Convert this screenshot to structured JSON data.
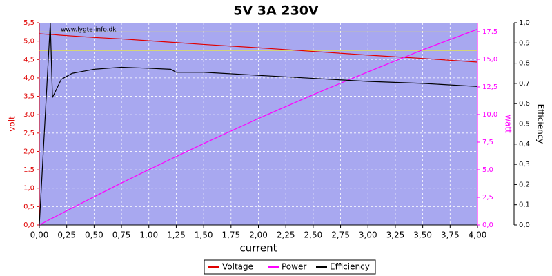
{
  "chart_data": {
    "type": "line",
    "title": "5V 3A 230V",
    "watermark": "www.lygte-info.dk",
    "xlabel": "current",
    "ylabel": "volt",
    "y2label": "watt",
    "y3label": "Efficiency",
    "x": [
      0,
      0.1,
      0.12,
      0.2,
      0.3,
      0.5,
      0.75,
      1.0,
      1.2,
      1.25,
      1.5,
      2.0,
      2.5,
      3.0,
      3.5,
      4.0
    ],
    "series": [
      {
        "name": "Voltage",
        "color": "#e00000",
        "axis": "y",
        "values": [
          5.2,
          5.18,
          5.18,
          5.16,
          5.14,
          5.1,
          5.06,
          5.01,
          4.97,
          4.96,
          4.91,
          4.82,
          4.72,
          4.62,
          4.53,
          4.43
        ]
      },
      {
        "name": "Power",
        "color": "#ff00ff",
        "axis": "y2",
        "values": [
          0,
          0.52,
          0.62,
          1.03,
          1.54,
          2.55,
          3.8,
          5.01,
          5.96,
          6.2,
          7.37,
          9.64,
          11.8,
          13.86,
          15.86,
          17.72
        ]
      },
      {
        "name": "Efficiency",
        "color": "#000000",
        "axis": "y3",
        "values": [
          0,
          1.0,
          0.63,
          0.72,
          0.75,
          0.77,
          0.78,
          0.775,
          0.77,
          0.755,
          0.755,
          0.74,
          0.725,
          0.71,
          0.7,
          0.685
        ]
      }
    ],
    "reference_lines": {
      "color": "#ffff00",
      "values": [
        4.75,
        5.25
      ]
    },
    "xlim": [
      0,
      4
    ],
    "xticks": [
      {
        "value": 0,
        "label": "0,00"
      },
      {
        "value": 0.25,
        "label": "0,25"
      },
      {
        "value": 0.5,
        "label": "0,50"
      },
      {
        "value": 0.75,
        "label": "0,75"
      },
      {
        "value": 1,
        "label": "1,00"
      },
      {
        "value": 1.25,
        "label": "1,25"
      },
      {
        "value": 1.5,
        "label": "1,50"
      },
      {
        "value": 1.75,
        "label": "1,75"
      },
      {
        "value": 2,
        "label": "2,00"
      },
      {
        "value": 2.25,
        "label": "2,25"
      },
      {
        "value": 2.5,
        "label": "2,50"
      },
      {
        "value": 2.75,
        "label": "2,75"
      },
      {
        "value": 3,
        "label": "3,00"
      },
      {
        "value": 3.25,
        "label": "3,25"
      },
      {
        "value": 3.5,
        "label": "3,50"
      },
      {
        "value": 3.75,
        "label": "3,75"
      },
      {
        "value": 4,
        "label": "4,00"
      }
    ],
    "ylim": [
      0,
      5.5
    ],
    "yticks": [
      {
        "value": 0,
        "label": "0,0"
      },
      {
        "value": 0.5,
        "label": "0,5"
      },
      {
        "value": 1,
        "label": "1,0"
      },
      {
        "value": 1.5,
        "label": "1,5"
      },
      {
        "value": 2,
        "label": "2,0"
      },
      {
        "value": 2.5,
        "label": "2,5"
      },
      {
        "value": 3,
        "label": "3,0"
      },
      {
        "value": 3.5,
        "label": "3,5"
      },
      {
        "value": 4,
        "label": "4,0"
      },
      {
        "value": 4.5,
        "label": "4,5"
      },
      {
        "value": 5,
        "label": "5,0"
      },
      {
        "value": 5.5,
        "label": "5,5"
      }
    ],
    "y2lim": [
      0,
      18.31
    ],
    "y2ticks": [
      {
        "value": 0,
        "label": "0,0"
      },
      {
        "value": 2.5,
        "label": "2,5"
      },
      {
        "value": 5,
        "label": "5,0"
      },
      {
        "value": 7.5,
        "label": "7,5"
      },
      {
        "value": 10,
        "label": "10,0"
      },
      {
        "value": 12.5,
        "label": "12,5"
      },
      {
        "value": 15,
        "label": "15,0"
      },
      {
        "value": 17.5,
        "label": "17,5"
      }
    ],
    "y3lim": [
      0,
      1
    ],
    "y3ticks": [
      {
        "value": 0,
        "label": "0,0"
      },
      {
        "value": 0.1,
        "label": "0,1"
      },
      {
        "value": 0.2,
        "label": "0,2"
      },
      {
        "value": 0.3,
        "label": "0,3"
      },
      {
        "value": 0.4,
        "label": "0,4"
      },
      {
        "value": 0.5,
        "label": "0,5"
      },
      {
        "value": 0.6,
        "label": "0,6"
      },
      {
        "value": 0.7,
        "label": "0,7"
      },
      {
        "value": 0.8,
        "label": "0,8"
      },
      {
        "value": 0.9,
        "label": "0,9"
      },
      {
        "value": 1,
        "label": "1,0"
      }
    ],
    "grid": true,
    "plot_background": "#a8a8f0",
    "legend": "bottom"
  }
}
